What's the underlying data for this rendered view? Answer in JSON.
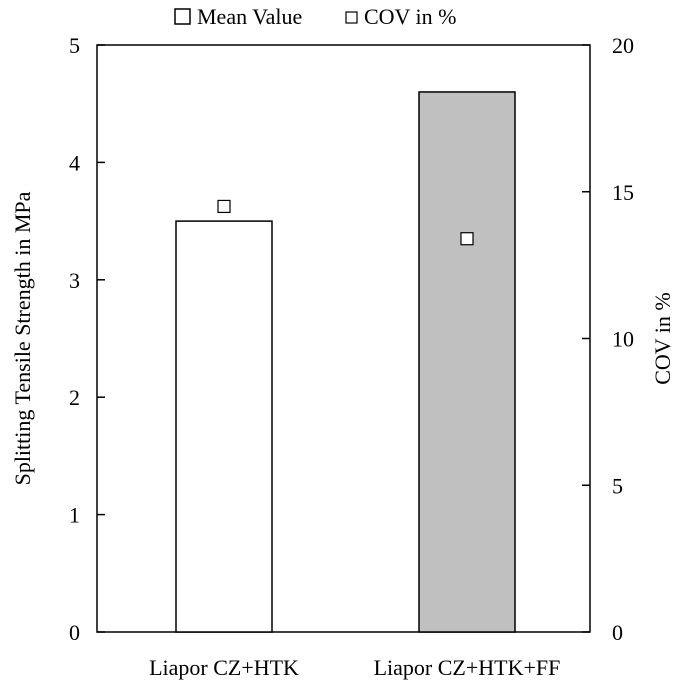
{
  "legend": [
    {
      "label": "Mean Value",
      "marker": "open-square-large"
    },
    {
      "label": "COV in %",
      "marker": "open-square-small"
    }
  ],
  "chart_data": {
    "type": "bar",
    "categories": [
      "Liapor CZ+HTK",
      "Liapor CZ+HTK+FF"
    ],
    "series": [
      {
        "name": "Mean Value",
        "axis": "left",
        "values": [
          3.5,
          4.6
        ],
        "fill_colors": [
          "#ffffff",
          "#c0c0c0"
        ]
      },
      {
        "name": "COV in %",
        "axis": "right",
        "values": [
          14.5,
          13.4
        ],
        "marker": "open-square"
      }
    ],
    "ylabel": "Splitting Tensile Strength in MPa",
    "ylim": [
      0,
      5
    ],
    "yticks": [
      "0",
      "1",
      "2",
      "3",
      "4",
      "5"
    ],
    "y2label": "COV in %",
    "y2lim": [
      0,
      20
    ],
    "y2ticks": [
      "0",
      "5",
      "10",
      "15",
      "20"
    ],
    "grid": false,
    "legend_position": "top"
  }
}
